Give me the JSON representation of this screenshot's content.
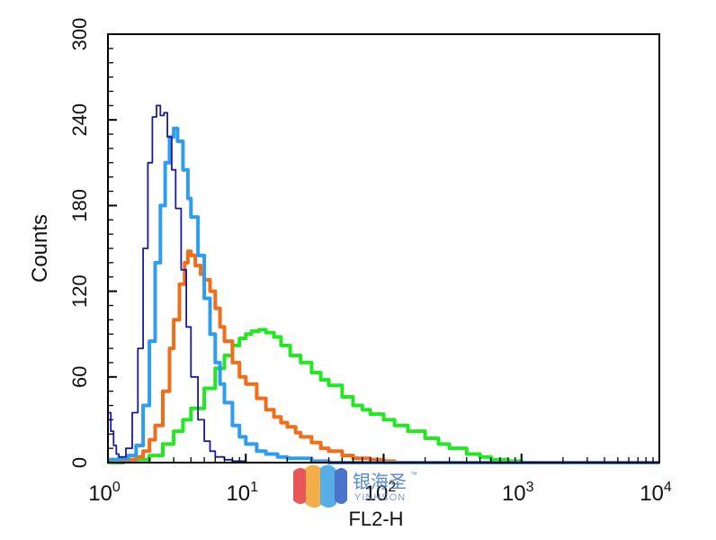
{
  "chart_data": {
    "type": "line",
    "title": "",
    "xlabel": "FL2-H",
    "ylabel": "Counts",
    "x_scale": "log",
    "xlim": [
      1,
      10000
    ],
    "ylim": [
      0,
      300
    ],
    "x_ticks": [
      1,
      10,
      100,
      1000,
      10000
    ],
    "x_tick_labels": [
      {
        "base": "10",
        "exp": "0"
      },
      {
        "base": "10",
        "exp": "1"
      },
      {
        "base": "10",
        "exp": "2"
      },
      {
        "base": "10",
        "exp": "3"
      },
      {
        "base": "10",
        "exp": "4"
      }
    ],
    "y_ticks": [
      0,
      60,
      120,
      180,
      240,
      300
    ],
    "y_tick_labels": [
      "0",
      "60",
      "120",
      "180",
      "240",
      "300"
    ],
    "grid": false,
    "series": [
      {
        "color": "#22e822",
        "stroke_weight": "thick",
        "points": [
          [
            1.0,
            0
          ],
          [
            1.3,
            1
          ],
          [
            1.6,
            2
          ],
          [
            2.0,
            5
          ],
          [
            2.5,
            13
          ],
          [
            3.0,
            22
          ],
          [
            3.5,
            30
          ],
          [
            4.0,
            38
          ],
          [
            5.0,
            52
          ],
          [
            6.0,
            66
          ],
          [
            7.0,
            75
          ],
          [
            8.0,
            82
          ],
          [
            9.0,
            87
          ],
          [
            10,
            90
          ],
          [
            11,
            92
          ],
          [
            12.5,
            93
          ],
          [
            14,
            91
          ],
          [
            16,
            88
          ],
          [
            18,
            82
          ],
          [
            21,
            75
          ],
          [
            25,
            70
          ],
          [
            30,
            63
          ],
          [
            35,
            58
          ],
          [
            40,
            54
          ],
          [
            50,
            46
          ],
          [
            60,
            40
          ],
          [
            70,
            37
          ],
          [
            80,
            34
          ],
          [
            100,
            30
          ],
          [
            120,
            26
          ],
          [
            150,
            22
          ],
          [
            200,
            17
          ],
          [
            250,
            13
          ],
          [
            300,
            10
          ],
          [
            400,
            6
          ],
          [
            500,
            4
          ],
          [
            600,
            2
          ],
          [
            800,
            1
          ],
          [
            1000,
            0
          ],
          [
            10000,
            0
          ]
        ]
      },
      {
        "color": "#f26d1a",
        "stroke_weight": "thick",
        "points": [
          [
            1.0,
            2
          ],
          [
            1.3,
            2
          ],
          [
            1.6,
            4
          ],
          [
            1.8,
            8
          ],
          [
            2.0,
            16
          ],
          [
            2.2,
            26
          ],
          [
            2.5,
            50
          ],
          [
            2.8,
            80
          ],
          [
            3.0,
            100
          ],
          [
            3.3,
            125
          ],
          [
            3.6,
            140
          ],
          [
            3.8,
            148
          ],
          [
            4.0,
            145
          ],
          [
            4.3,
            138
          ],
          [
            4.7,
            132
          ],
          [
            5.0,
            128
          ],
          [
            5.5,
            120
          ],
          [
            6.0,
            108
          ],
          [
            6.5,
            95
          ],
          [
            7.0,
            85
          ],
          [
            8.0,
            70
          ],
          [
            9.0,
            60
          ],
          [
            10,
            55
          ],
          [
            12,
            45
          ],
          [
            14,
            37
          ],
          [
            16,
            32
          ],
          [
            18,
            28
          ],
          [
            20,
            25
          ],
          [
            23,
            21
          ],
          [
            25,
            18
          ],
          [
            30,
            14
          ],
          [
            35,
            10
          ],
          [
            40,
            8
          ],
          [
            50,
            5
          ],
          [
            60,
            3
          ],
          [
            80,
            2
          ],
          [
            100,
            1
          ],
          [
            120,
            0
          ],
          [
            10000,
            0
          ]
        ]
      },
      {
        "color": "#2e9cf0",
        "stroke_weight": "thick",
        "points": [
          [
            1.0,
            2
          ],
          [
            1.2,
            3
          ],
          [
            1.4,
            5
          ],
          [
            1.6,
            12
          ],
          [
            1.8,
            40
          ],
          [
            2.0,
            85
          ],
          [
            2.2,
            140
          ],
          [
            2.4,
            180
          ],
          [
            2.6,
            210
          ],
          [
            2.8,
            228
          ],
          [
            3.0,
            234
          ],
          [
            3.2,
            225
          ],
          [
            3.5,
            205
          ],
          [
            3.8,
            185
          ],
          [
            4.0,
            172
          ],
          [
            4.5,
            145
          ],
          [
            5.0,
            115
          ],
          [
            5.5,
            90
          ],
          [
            6.0,
            70
          ],
          [
            6.5,
            55
          ],
          [
            7.0,
            42
          ],
          [
            8.0,
            26
          ],
          [
            9.0,
            18
          ],
          [
            10,
            13
          ],
          [
            12,
            8
          ],
          [
            14,
            6
          ],
          [
            17,
            4
          ],
          [
            20,
            3
          ],
          [
            30,
            1
          ],
          [
            40,
            0
          ],
          [
            10000,
            0
          ]
        ]
      },
      {
        "color": "#1a1aa0",
        "stroke_weight": "thin",
        "points": [
          [
            1.0,
            35
          ],
          [
            1.05,
            22
          ],
          [
            1.1,
            12
          ],
          [
            1.15,
            6
          ],
          [
            1.2,
            4
          ],
          [
            1.35,
            10
          ],
          [
            1.5,
            35
          ],
          [
            1.65,
            80
          ],
          [
            1.8,
            150
          ],
          [
            1.95,
            210
          ],
          [
            2.1,
            242
          ],
          [
            2.25,
            250
          ],
          [
            2.4,
            243
          ],
          [
            2.55,
            245
          ],
          [
            2.7,
            228
          ],
          [
            2.9,
            205
          ],
          [
            3.1,
            178
          ],
          [
            3.4,
            135
          ],
          [
            3.7,
            95
          ],
          [
            4.0,
            60
          ],
          [
            4.5,
            30
          ],
          [
            5.0,
            15
          ],
          [
            5.5,
            8
          ],
          [
            6.0,
            4
          ],
          [
            7.0,
            2
          ],
          [
            8.0,
            1
          ],
          [
            10,
            0
          ],
          [
            10000,
            0
          ]
        ]
      }
    ]
  },
  "watermark": {
    "chinese": "银海圣",
    "latin": "YINHSON",
    "tm": "™",
    "colors": [
      "#e43a3a",
      "#f2a02a",
      "#3aa0e0",
      "#2a5cc0"
    ]
  }
}
